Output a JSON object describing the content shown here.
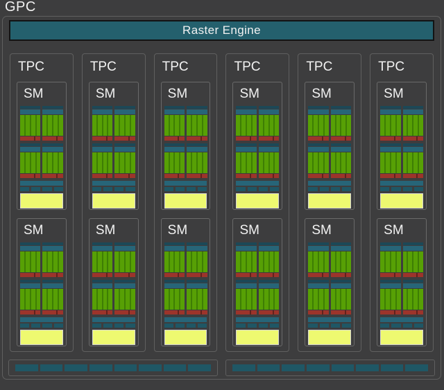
{
  "diagram": {
    "title": "GPC",
    "raster_engine_label": "Raster Engine",
    "tpcs": [
      {
        "label": "TPC",
        "sms": [
          "SM",
          "SM"
        ]
      },
      {
        "label": "TPC",
        "sms": [
          "SM",
          "SM"
        ]
      },
      {
        "label": "TPC",
        "sms": [
          "SM",
          "SM"
        ]
      },
      {
        "label": "TPC",
        "sms": [
          "SM",
          "SM"
        ]
      },
      {
        "label": "TPC",
        "sms": [
          "SM",
          "SM"
        ]
      },
      {
        "label": "TPC",
        "sms": [
          "SM",
          "SM"
        ]
      }
    ],
    "sm_internals": {
      "partitions_per_sm": 2,
      "halves_per_partition": 2,
      "core_columns_per_half": 4,
      "tex_segments_per_sm": 4
    },
    "rop_partitions": [
      {
        "segments": 8
      },
      {
        "segments": 8
      }
    ],
    "colors": {
      "background": "#3d3d3e",
      "box_border": "#606060",
      "raster_fill": "#24606d",
      "scheduler_teal_dark": "#1c4857",
      "scheduler_teal": "#276578",
      "tex_rop_teal": "#1f5765",
      "cores_green": "#57a005",
      "cores_green_separator": "#3e7e04",
      "ldst_red": "#9c342b",
      "cache_yellow": "#eef970",
      "label_text": "#f2f2f2"
    }
  }
}
